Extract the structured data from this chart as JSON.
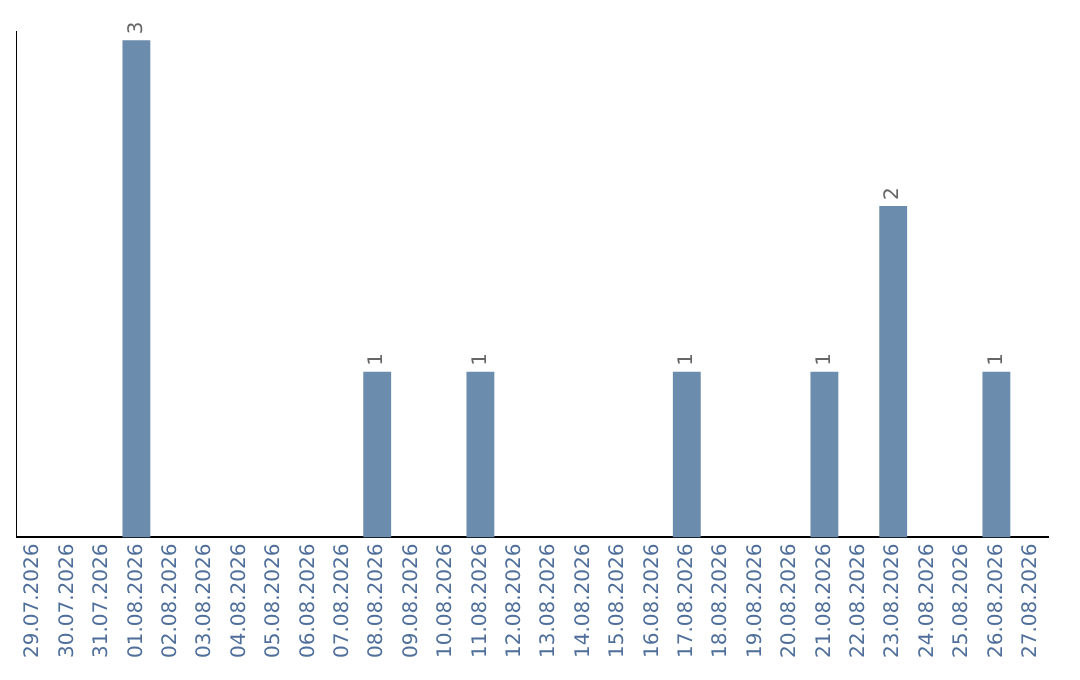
{
  "chart_data": {
    "type": "bar",
    "categories": [
      "29.07.2026",
      "30.07.2026",
      "31.07.2026",
      "01.08.2026",
      "02.08.2026",
      "03.08.2026",
      "04.08.2026",
      "05.08.2026",
      "06.08.2026",
      "07.08.2026",
      "08.08.2026",
      "09.08.2026",
      "10.08.2026",
      "11.08.2026",
      "12.08.2026",
      "13.08.2026",
      "14.08.2026",
      "15.08.2026",
      "16.08.2026",
      "17.08.2026",
      "18.08.2026",
      "19.08.2026",
      "20.08.2026",
      "21.08.2026",
      "22.08.2026",
      "23.08.2026",
      "24.08.2026",
      "25.08.2026",
      "26.08.2026",
      "27.08.2026"
    ],
    "values": [
      0,
      0,
      0,
      3,
      0,
      0,
      0,
      0,
      0,
      0,
      1,
      0,
      0,
      1,
      0,
      0,
      0,
      0,
      0,
      1,
      0,
      0,
      0,
      1,
      0,
      2,
      0,
      0,
      1,
      0
    ],
    "value_labels": [
      null,
      null,
      null,
      "3",
      null,
      null,
      null,
      null,
      null,
      null,
      "1",
      null,
      null,
      "1",
      null,
      null,
      null,
      null,
      null,
      "1",
      null,
      null,
      null,
      "1",
      null,
      "2",
      null,
      null,
      "1",
      null
    ],
    "color": "#6b8cad",
    "ylim": [
      0,
      3.05
    ],
    "tick_labels": "x"
  }
}
